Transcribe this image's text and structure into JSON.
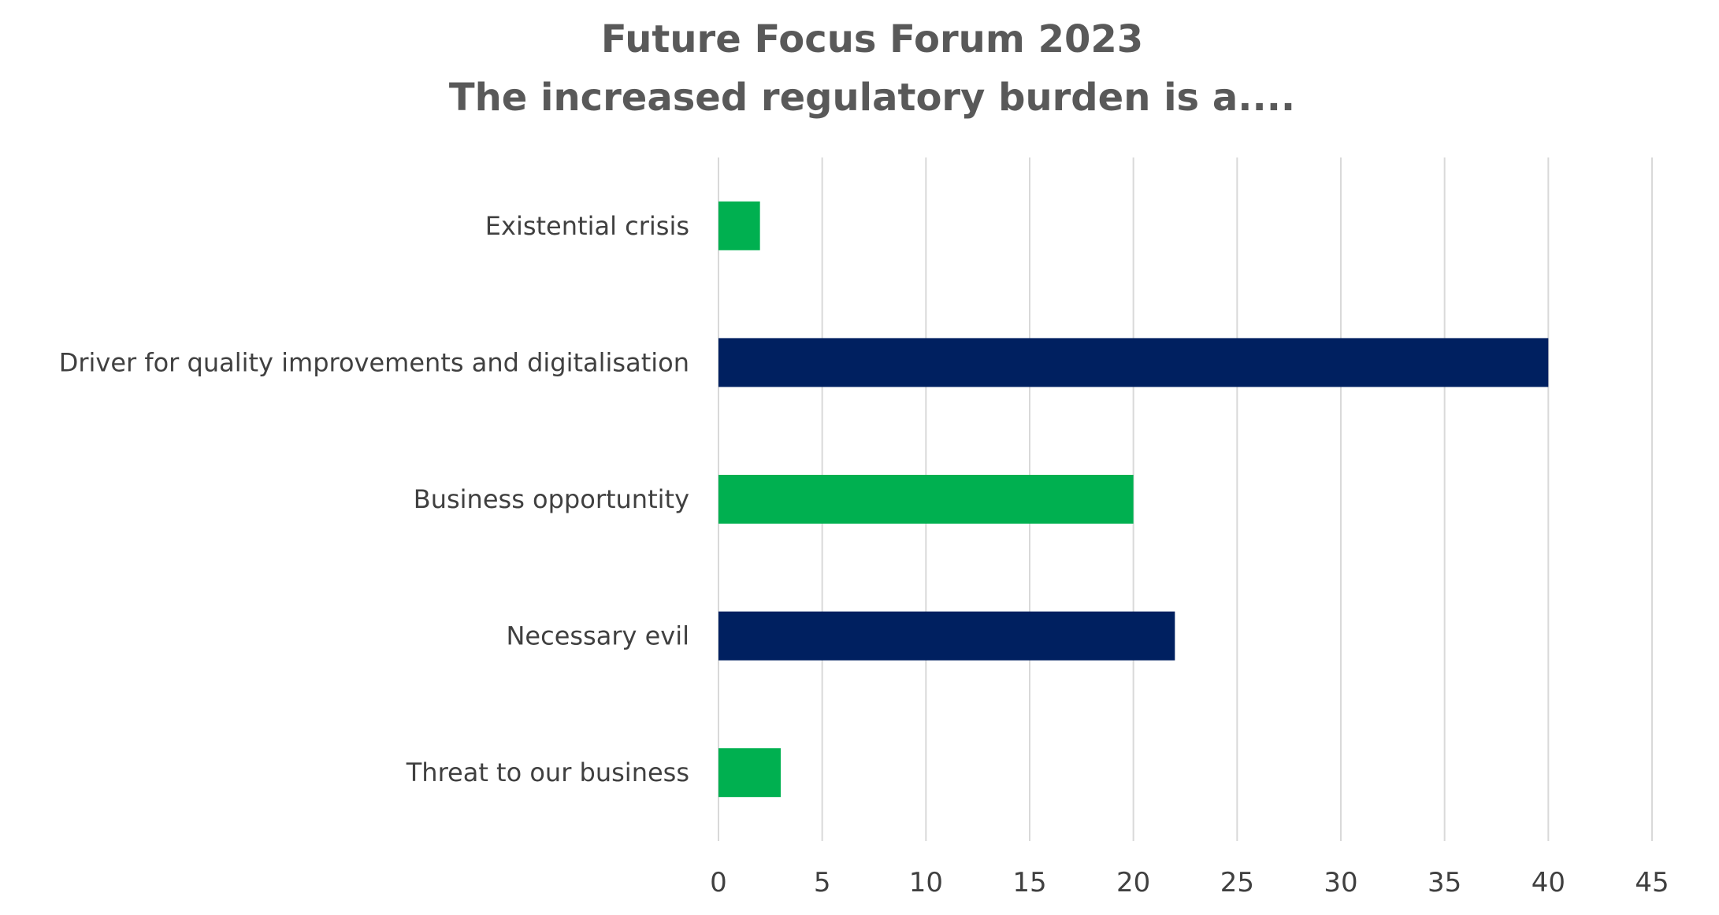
{
  "chart_data": {
    "type": "bar",
    "orientation": "horizontal",
    "title": "Future Focus Forum 2023",
    "subtitle": "The increased regulatory burden is a....",
    "categories": [
      "Existential crisis",
      "Driver for quality improvements and digitalisation",
      "Business opportuntity",
      "Necessary evil",
      "Threat to our business"
    ],
    "values": [
      2,
      40,
      20,
      22,
      3
    ],
    "bar_colors": [
      "#00b050",
      "#002060",
      "#00b050",
      "#002060",
      "#00b050"
    ],
    "xlim": [
      0,
      45
    ],
    "x_ticks": [
      "0",
      "5",
      "10",
      "15",
      "20",
      "25",
      "30",
      "35",
      "40",
      "45"
    ],
    "xlabel": "",
    "ylabel": "",
    "grid": "vertical",
    "legend": "none"
  }
}
